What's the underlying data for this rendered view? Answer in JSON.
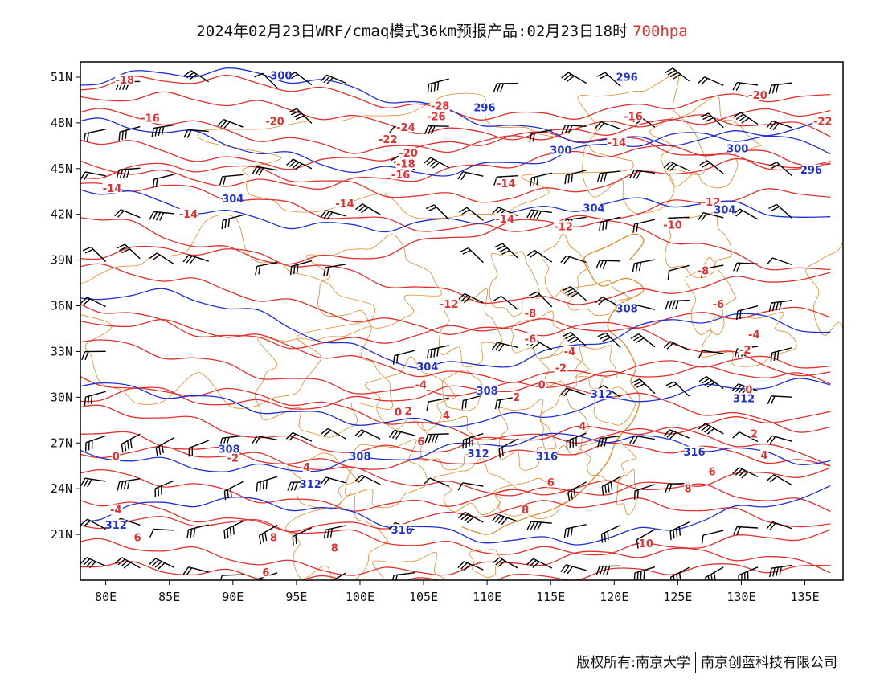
{
  "title": {
    "main": "2024年02月23日WRF/cmaq模式36km预报产品:02月23日18时",
    "level": "700hpa"
  },
  "axes": {
    "lat_labels": [
      "51N",
      "48N",
      "45N",
      "42N",
      "39N",
      "36N",
      "33N",
      "30N",
      "27N",
      "24N",
      "21N"
    ],
    "lat_values": [
      51,
      48,
      45,
      42,
      39,
      36,
      33,
      30,
      27,
      24,
      21
    ],
    "lon_labels": [
      "80E",
      "85E",
      "90E",
      "95E",
      "100E",
      "105E",
      "110E",
      "115E",
      "120E",
      "125E",
      "130E",
      "135E"
    ],
    "lon_values": [
      80,
      85,
      90,
      95,
      100,
      105,
      110,
      115,
      120,
      125,
      130,
      135
    ],
    "lon_range": [
      78,
      138
    ],
    "lat_range": [
      18,
      52
    ]
  },
  "colors": {
    "temperature": "#e03030",
    "height": "#2030d0",
    "border": "#e08a30",
    "barb": "#000000"
  },
  "temperature_labels": [
    {
      "text": "-18",
      "lon": 81.5,
      "lat": 50.7
    },
    {
      "text": "-16",
      "lon": 83.5,
      "lat": 48.2
    },
    {
      "text": "-20",
      "lon": 93.3,
      "lat": 48.0
    },
    {
      "text": "-28",
      "lon": 106.3,
      "lat": 49.0
    },
    {
      "text": "-26",
      "lon": 106.0,
      "lat": 48.3
    },
    {
      "text": "-24",
      "lon": 103.6,
      "lat": 47.6
    },
    {
      "text": "-22",
      "lon": 102.2,
      "lat": 46.8
    },
    {
      "text": "-20",
      "lon": 103.8,
      "lat": 45.9
    },
    {
      "text": "-18",
      "lon": 103.6,
      "lat": 45.2
    },
    {
      "text": "-16",
      "lon": 103.2,
      "lat": 44.5
    },
    {
      "text": "-16",
      "lon": 121.5,
      "lat": 48.3
    },
    {
      "text": "-14",
      "lon": 120.2,
      "lat": 46.6
    },
    {
      "text": "-20",
      "lon": 131.3,
      "lat": 49.7
    },
    {
      "text": "-22",
      "lon": 136.4,
      "lat": 48.0
    },
    {
      "text": "-14",
      "lon": 80.5,
      "lat": 43.6
    },
    {
      "text": "-14",
      "lon": 86.5,
      "lat": 41.9
    },
    {
      "text": "-14",
      "lon": 98.8,
      "lat": 42.6
    },
    {
      "text": "-14",
      "lon": 111.5,
      "lat": 43.9
    },
    {
      "text": "-14",
      "lon": 111.4,
      "lat": 41.6
    },
    {
      "text": "-12",
      "lon": 116.0,
      "lat": 41.1
    },
    {
      "text": "-12",
      "lon": 127.6,
      "lat": 42.7
    },
    {
      "text": "-10",
      "lon": 124.6,
      "lat": 41.2
    },
    {
      "text": "-8",
      "lon": 127.0,
      "lat": 38.2
    },
    {
      "text": "-6",
      "lon": 128.2,
      "lat": 36.0
    },
    {
      "text": "-12",
      "lon": 107.0,
      "lat": 36.0
    },
    {
      "text": "-8",
      "lon": 113.4,
      "lat": 35.4
    },
    {
      "text": "-6",
      "lon": 113.4,
      "lat": 33.7
    },
    {
      "text": "-4",
      "lon": 116.5,
      "lat": 32.9
    },
    {
      "text": "-2",
      "lon": 115.8,
      "lat": 31.8
    },
    {
      "text": "-4",
      "lon": 131.0,
      "lat": 34.0
    },
    {
      "text": "-2",
      "lon": 130.3,
      "lat": 33.0
    },
    {
      "text": "-4",
      "lon": 104.8,
      "lat": 30.7
    },
    {
      "text": "0",
      "lon": 103.0,
      "lat": 28.9
    },
    {
      "text": "2",
      "lon": 103.8,
      "lat": 29.0
    },
    {
      "text": "4",
      "lon": 106.8,
      "lat": 28.7
    },
    {
      "text": "2",
      "lon": 112.3,
      "lat": 29.9
    },
    {
      "text": "0",
      "lon": 114.3,
      "lat": 30.7
    },
    {
      "text": "0",
      "lon": 130.6,
      "lat": 30.4
    },
    {
      "text": "2",
      "lon": 131.0,
      "lat": 27.5
    },
    {
      "text": "4",
      "lon": 131.8,
      "lat": 26.1
    },
    {
      "text": "6",
      "lon": 104.8,
      "lat": 27.0
    },
    {
      "text": "4",
      "lon": 117.5,
      "lat": 28.0
    },
    {
      "text": "6",
      "lon": 127.7,
      "lat": 25.0
    },
    {
      "text": "8",
      "lon": 125.8,
      "lat": 23.9
    },
    {
      "text": "0",
      "lon": 80.8,
      "lat": 26.0
    },
    {
      "text": "-2",
      "lon": 90.0,
      "lat": 25.9
    },
    {
      "text": "4",
      "lon": 95.8,
      "lat": 25.3
    },
    {
      "text": "6",
      "lon": 115.0,
      "lat": 24.3
    },
    {
      "text": "-4",
      "lon": 80.8,
      "lat": 22.5
    },
    {
      "text": "6",
      "lon": 82.5,
      "lat": 20.7
    },
    {
      "text": "8",
      "lon": 93.2,
      "lat": 20.7
    },
    {
      "text": "8",
      "lon": 98.0,
      "lat": 20.0
    },
    {
      "text": "6",
      "lon": 92.6,
      "lat": 18.4
    },
    {
      "text": "8",
      "lon": 113.0,
      "lat": 22.5
    },
    {
      "text": "10",
      "lon": 122.5,
      "lat": 20.3
    }
  ],
  "height_labels": [
    {
      "text": "300",
      "lon": 93.8,
      "lat": 51.0
    },
    {
      "text": "296",
      "lon": 109.8,
      "lat": 48.9
    },
    {
      "text": "296",
      "lon": 121.0,
      "lat": 50.9
    },
    {
      "text": "300",
      "lon": 115.8,
      "lat": 46.1
    },
    {
      "text": "300",
      "lon": 129.7,
      "lat": 46.2
    },
    {
      "text": "296",
      "lon": 135.5,
      "lat": 44.8
    },
    {
      "text": "304",
      "lon": 90.0,
      "lat": 42.9
    },
    {
      "text": "304",
      "lon": 118.4,
      "lat": 42.3
    },
    {
      "text": "304",
      "lon": 128.7,
      "lat": 42.2
    },
    {
      "text": "308",
      "lon": 121.0,
      "lat": 35.7
    },
    {
      "text": "304",
      "lon": 105.3,
      "lat": 31.9
    },
    {
      "text": "308",
      "lon": 110.0,
      "lat": 30.3
    },
    {
      "text": "312",
      "lon": 119.0,
      "lat": 30.1
    },
    {
      "text": "312",
      "lon": 130.2,
      "lat": 29.8
    },
    {
      "text": "308",
      "lon": 89.7,
      "lat": 26.5
    },
    {
      "text": "308",
      "lon": 100.0,
      "lat": 26.0
    },
    {
      "text": "312",
      "lon": 109.3,
      "lat": 26.2
    },
    {
      "text": "316",
      "lon": 114.7,
      "lat": 26.0
    },
    {
      "text": "316",
      "lon": 126.3,
      "lat": 26.3
    },
    {
      "text": "312",
      "lon": 96.1,
      "lat": 24.2
    },
    {
      "text": "312",
      "lon": 80.8,
      "lat": 21.5
    },
    {
      "text": "316",
      "lon": 103.3,
      "lat": 21.2
    }
  ],
  "footer": {
    "copyright": "版权所有:南京大学",
    "company": "南京创蓝科技有限公司"
  }
}
